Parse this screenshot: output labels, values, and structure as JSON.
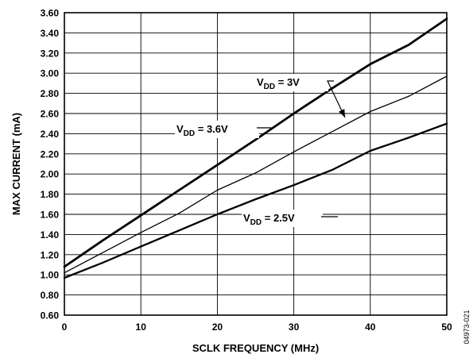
{
  "chart_data": {
    "type": "line",
    "xlabel": "SCLK FREQUENCY (MHz)",
    "ylabel": "MAX CURRENT (mA)",
    "xlim": [
      0,
      50
    ],
    "ylim": [
      0.6,
      3.6
    ],
    "x_ticks": [
      0,
      10,
      20,
      30,
      40,
      50
    ],
    "x_tick_labels": [
      "0",
      "10",
      "20",
      "30",
      "40",
      "50"
    ],
    "y_ticks": [
      0.6,
      0.8,
      1.0,
      1.2,
      1.4,
      1.6,
      1.8,
      2.0,
      2.2,
      2.4,
      2.6,
      2.8,
      3.0,
      3.2,
      3.4,
      3.6
    ],
    "y_tick_labels": [
      "0.60",
      "0.80",
      "1.00",
      "1.20",
      "1.40",
      "1.60",
      "1.80",
      "2.00",
      "2.20",
      "2.40",
      "2.60",
      "2.80",
      "3.00",
      "3.20",
      "3.40",
      "3.60"
    ],
    "grid": true,
    "series": [
      {
        "annotation": {
          "main": "V",
          "sub": "DD",
          "value": " = 3.6V"
        },
        "x": [
          0,
          5,
          10,
          15,
          20,
          25,
          30,
          35,
          40,
          45,
          50
        ],
        "y": [
          1.08,
          1.34,
          1.59,
          1.84,
          2.09,
          2.34,
          2.6,
          2.85,
          3.09,
          3.28,
          3.54
        ],
        "stroke_width": 2.8
      },
      {
        "annotation": {
          "main": "V",
          "sub": "DD",
          "value": " = 3V"
        },
        "x": [
          0,
          5,
          10,
          15,
          20,
          25,
          30,
          35,
          40,
          45,
          50
        ],
        "y": [
          1.02,
          1.22,
          1.42,
          1.61,
          1.84,
          2.01,
          2.22,
          2.42,
          2.62,
          2.77,
          2.97
        ],
        "stroke_width": 1.3
      },
      {
        "annotation": {
          "main": "V",
          "sub": "DD",
          "value": " = 2.5V"
        },
        "x": [
          0,
          5,
          10,
          15,
          20,
          25,
          30,
          35,
          40,
          45,
          50
        ],
        "y": [
          0.97,
          1.12,
          1.28,
          1.44,
          1.6,
          1.75,
          1.89,
          2.04,
          2.23,
          2.36,
          2.5
        ],
        "stroke_width": 2.3
      }
    ]
  },
  "figure_id": "04973-021"
}
